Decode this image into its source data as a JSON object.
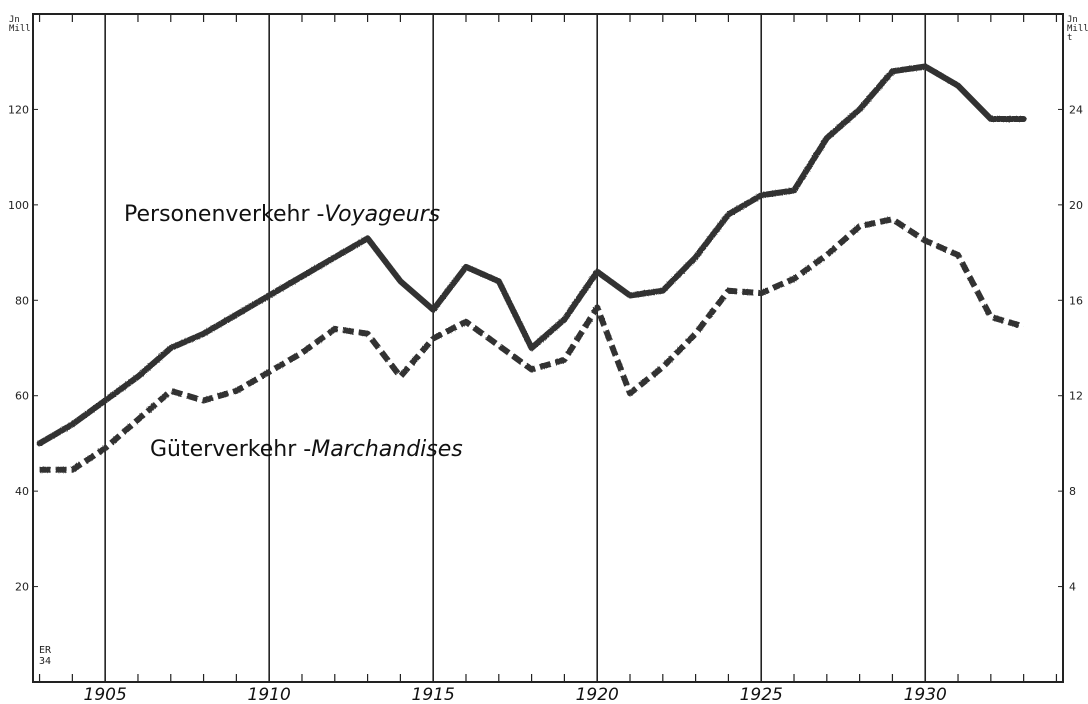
{
  "chart_data": {
    "type": "line",
    "title": "",
    "x": [
      1903,
      1904,
      1905,
      1906,
      1907,
      1908,
      1909,
      1910,
      1911,
      1912,
      1913,
      1914,
      1915,
      1916,
      1917,
      1918,
      1919,
      1920,
      1921,
      1922,
      1923,
      1924,
      1925,
      1926,
      1927,
      1928,
      1929,
      1930,
      1931,
      1932,
      1933
    ],
    "xlim": [
      1902.8,
      1934.2
    ],
    "x_tick_labels": [
      "1905",
      "1910",
      "1915",
      "1920",
      "1925",
      "1930"
    ],
    "left_axis": {
      "unit_lines": [
        "Jn",
        "Mill"
      ],
      "ylim": [
        0,
        140
      ],
      "tick_labels": [
        "20",
        "40",
        "60",
        "80",
        "100",
        "120"
      ]
    },
    "right_axis": {
      "unit_lines": [
        "Jn",
        "Mill",
        "t"
      ],
      "ylim": [
        0,
        28
      ],
      "tick_labels": [
        "4",
        "8",
        "12",
        "16",
        "20",
        "24"
      ]
    },
    "series": [
      {
        "name": "Personenverkehr -Voyageurs",
        "axis": "left",
        "style": "solid",
        "color": "#333333",
        "values": [
          50,
          54,
          59,
          64,
          70,
          73,
          77,
          81,
          85,
          89,
          93,
          84,
          78,
          87,
          84,
          70,
          76,
          86,
          81,
          82,
          89,
          98,
          102,
          103,
          114,
          120,
          128,
          129,
          125,
          118,
          118
        ]
      },
      {
        "name": "Güterverkehr -Marchandises",
        "axis": "right",
        "style": "dashed",
        "color": "#333333",
        "values": [
          8.9,
          8.9,
          9.8,
          11.0,
          12.2,
          11.8,
          12.2,
          13.0,
          13.8,
          14.8,
          14.6,
          12.8,
          14.4,
          15.1,
          14.1,
          13.1,
          13.5,
          15.7,
          12.1,
          13.2,
          14.6,
          16.4,
          16.3,
          16.9,
          17.9,
          19.1,
          19.4,
          18.5,
          17.9,
          15.3,
          14.9
        ]
      }
    ],
    "grid": {
      "vertical_major_every_years": 5,
      "horizontal": false
    },
    "minor_ticks": "each year on top and bottom edges"
  },
  "labels": {
    "series1_prefix": "Personenverkehr -",
    "series1_suffix": "Voyageurs",
    "series2_prefix": "Güterverkehr -",
    "series2_suffix": "Marchandises",
    "initials_line1": "ER",
    "initials_line2": "34"
  }
}
